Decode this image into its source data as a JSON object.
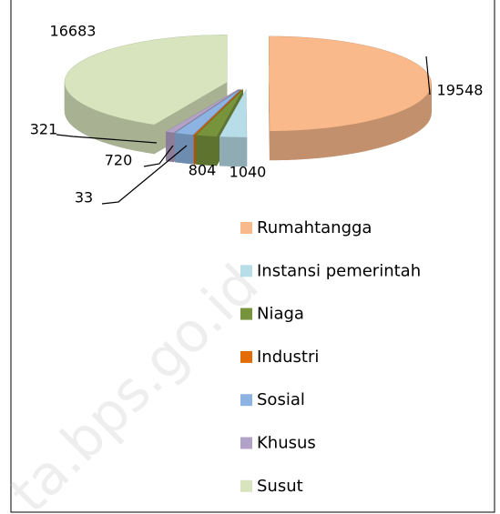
{
  "chart_data": {
    "type": "pie",
    "categories": [
      "Rumahtangga",
      "Instansi pemerintah",
      "Niaga",
      "Industri",
      "Sosial",
      "Khusus",
      "Susut"
    ],
    "values": [
      19548,
      1040,
      804,
      33,
      720,
      321,
      16683
    ],
    "colors": [
      "#f9b98a",
      "#b7dde8",
      "#77933c",
      "#e36c09",
      "#8db3e2",
      "#b3a2c7",
      "#d7e4bd"
    ],
    "legend": "right",
    "watermark": "ta.bps.go.id"
  }
}
